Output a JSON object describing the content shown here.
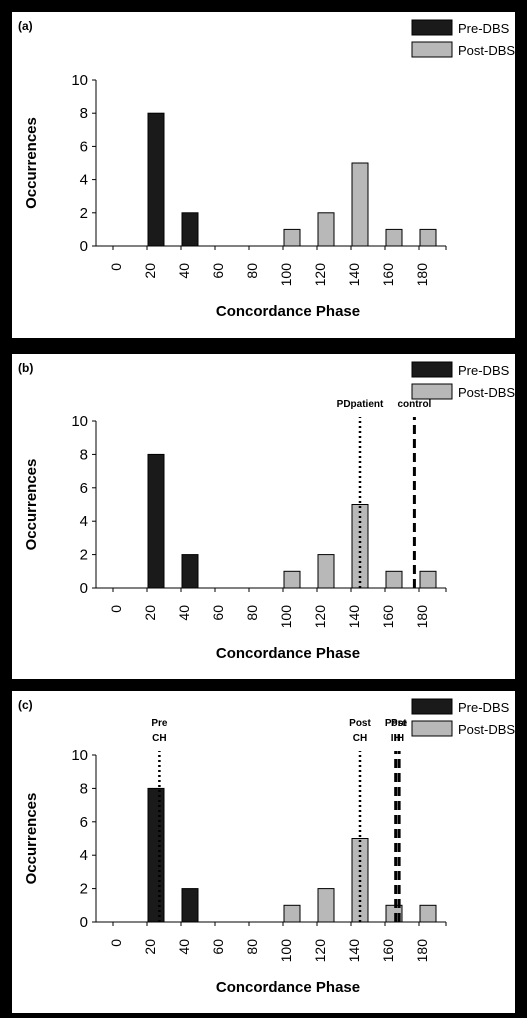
{
  "chart_data": [
    {
      "type": "bar",
      "panel_label": "(a)",
      "categories": [
        "0",
        "20",
        "40",
        "60",
        "80",
        "100",
        "120",
        "140",
        "160",
        "180"
      ],
      "series": [
        {
          "name": "Pre-DBS",
          "values": [
            0,
            8,
            2,
            0,
            0,
            0,
            0,
            0,
            0,
            0
          ],
          "color": "#1a1a1a"
        },
        {
          "name": "Post-DBS",
          "values": [
            0,
            0,
            0,
            0,
            0,
            1,
            2,
            5,
            1,
            1
          ],
          "color": "#b8b8b8"
        }
      ],
      "xlabel": "Concordance Phase",
      "ylabel": "Occurrences",
      "ylim": [
        0,
        10
      ],
      "yticks": [
        "0",
        "2",
        "4",
        "6",
        "8",
        "10"
      ],
      "legend_position": "top-right",
      "annotations": []
    },
    {
      "type": "bar",
      "panel_label": "(b)",
      "categories": [
        "0",
        "20",
        "40",
        "60",
        "80",
        "100",
        "120",
        "140",
        "160",
        "180"
      ],
      "series": [
        {
          "name": "Pre-DBS",
          "values": [
            0,
            8,
            2,
            0,
            0,
            0,
            0,
            0,
            0,
            0
          ],
          "color": "#1a1a1a"
        },
        {
          "name": "Post-DBS",
          "values": [
            0,
            0,
            0,
            0,
            0,
            1,
            2,
            5,
            1,
            1
          ],
          "color": "#b8b8b8"
        }
      ],
      "xlabel": "Concordance Phase",
      "ylabel": "Occurrences",
      "ylim": [
        0,
        10
      ],
      "yticks": [
        "0",
        "2",
        "4",
        "6",
        "8",
        "10"
      ],
      "legend_position": "top-right",
      "annotations": [
        {
          "text": [
            "PDpatient"
          ],
          "x": 140,
          "style": "dotted"
        },
        {
          "text": [
            "control"
          ],
          "x": 172,
          "style": "dashed"
        }
      ]
    },
    {
      "type": "bar",
      "panel_label": "(c)",
      "categories": [
        "0",
        "20",
        "40",
        "60",
        "80",
        "100",
        "120",
        "140",
        "160",
        "180"
      ],
      "series": [
        {
          "name": "Pre-DBS",
          "values": [
            0,
            8,
            2,
            0,
            0,
            0,
            0,
            0,
            0,
            0
          ],
          "color": "#1a1a1a"
        },
        {
          "name": "Post-DBS",
          "values": [
            0,
            0,
            0,
            0,
            0,
            1,
            2,
            5,
            1,
            1
          ],
          "color": "#b8b8b8"
        }
      ],
      "xlabel": "Concordance Phase",
      "ylabel": "Occurrences",
      "ylim": [
        0,
        10
      ],
      "yticks": [
        "0",
        "2",
        "4",
        "6",
        "8",
        "10"
      ],
      "legend_position": "top-right",
      "annotations": [
        {
          "text": [
            "Pre",
            "CH"
          ],
          "x": 22,
          "style": "dotted"
        },
        {
          "text": [
            "Post",
            "CH"
          ],
          "x": 140,
          "style": "dotted"
        },
        {
          "text": [
            "Post",
            "IH"
          ],
          "x": 161,
          "style": "dashed"
        },
        {
          "text": [
            "Pre",
            "IH"
          ],
          "x": 163,
          "style": "dashed"
        }
      ]
    }
  ]
}
